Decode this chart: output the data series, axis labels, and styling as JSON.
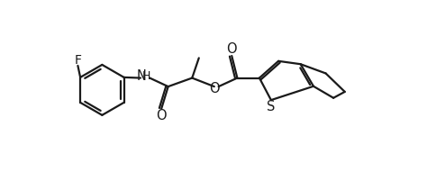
{
  "bg_color": "#ffffff",
  "line_color": "#1a1a1a",
  "line_width": 1.6,
  "figsize": [
    4.84,
    1.91
  ],
  "dpi": 100,
  "xlim": [
    0,
    11
  ],
  "ylim": [
    0,
    4.3
  ]
}
